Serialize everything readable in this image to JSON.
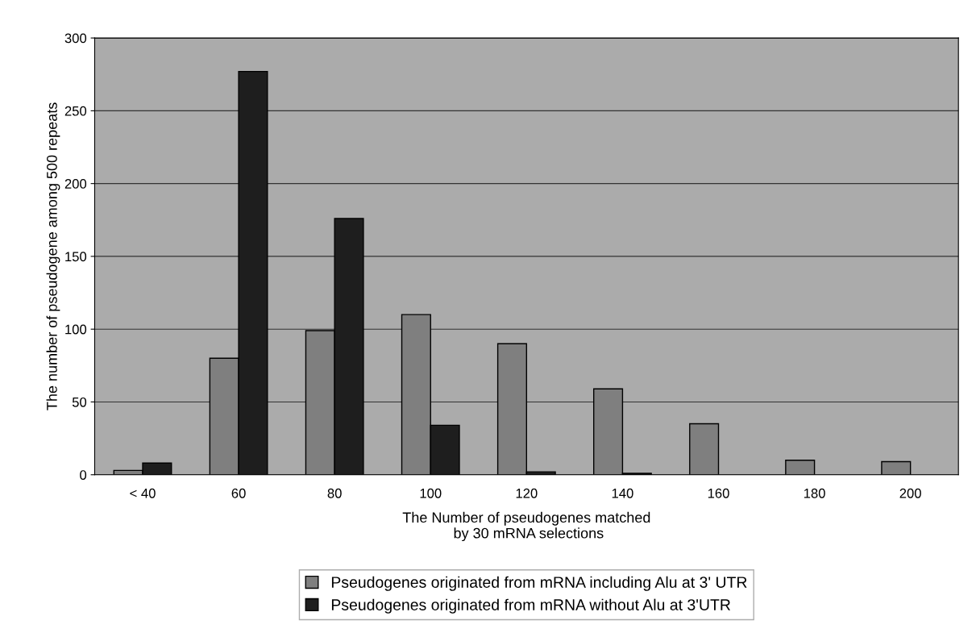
{
  "chart_data": {
    "type": "bar",
    "xlabel": "The Number of pseudogenes matched\n by 30 mRNA selections",
    "ylabel": "The number of pseudogene among 500 repeats",
    "categories": [
      "< 40",
      "60",
      "80",
      "100",
      "120",
      "140",
      "160",
      "180",
      "200"
    ],
    "series": [
      {
        "name": "Pseudogenes originated from mRNA including Alu at 3' UTR",
        "color": "#7f7f7f",
        "values": [
          3,
          80,
          99,
          110,
          90,
          59,
          35,
          10,
          9
        ]
      },
      {
        "name": "Pseudogenes originated from mRNA without Alu at 3'UTR",
        "color": "#1e1e1e",
        "values": [
          8,
          277,
          176,
          34,
          2,
          1,
          null,
          null,
          null
        ]
      }
    ],
    "ylim": [
      0,
      300
    ],
    "yticks": [
      0,
      50,
      100,
      150,
      200,
      250,
      300
    ],
    "grid": "y",
    "legend": "bottom"
  }
}
